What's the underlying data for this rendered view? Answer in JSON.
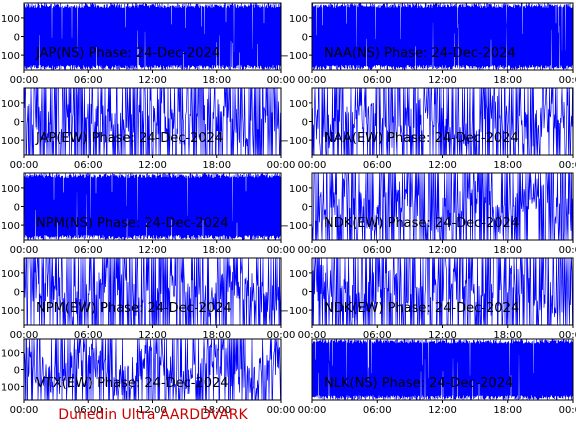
{
  "footer": "Dunedin Ultra AARDDVARK",
  "colors": {
    "trace": "#0000ff",
    "frame": "#000000",
    "footer": "#cc0000",
    "background": "#ffffff"
  },
  "chart_data": [
    {
      "type": "line",
      "title": "JAP(NS) Phase: 24-Dec-2024",
      "x_ticks": [
        "00:00",
        "06:00",
        "12:00",
        "18:00",
        "00:00"
      ],
      "y_ticks": [
        "100",
        "0",
        "-100"
      ],
      "ylim": [
        -180,
        180
      ],
      "axis_labels_shown": true,
      "fill": 0.97,
      "amplitude": 180
    },
    {
      "type": "line",
      "title": "NAA(NS) Phase: 24-Dec-2024",
      "x_ticks": [
        "00:00",
        "06:00",
        "12:00",
        "18:00",
        "00:00"
      ],
      "y_ticks": [
        "100",
        "0",
        "-100"
      ],
      "ylim": [
        -180,
        180
      ],
      "axis_labels_shown": true,
      "fill": 0.95,
      "amplitude": 180
    },
    {
      "type": "line",
      "title": "JAP(EW) Phase: 24-Dec-2024",
      "x_ticks": [
        "00:00",
        "06:00",
        "12:00",
        "18:00",
        "00:00"
      ],
      "y_ticks": [
        "100",
        "0",
        "-100"
      ],
      "ylim": [
        -180,
        180
      ],
      "axis_labels_shown": true,
      "fill": 0.6,
      "amplitude": 180
    },
    {
      "type": "line",
      "title": "NAA(EW) Phase: 24-Dec-2024",
      "x_ticks": [
        "00:00",
        "06:00",
        "12:00",
        "18:00",
        "00:00"
      ],
      "y_ticks": [
        "100",
        "0",
        "-100"
      ],
      "ylim": [
        -180,
        180
      ],
      "axis_labels_shown": true,
      "fill": 0.55,
      "amplitude": 180
    },
    {
      "type": "line",
      "title": "NPM(NS) Phase: 24-Dec-2024",
      "x_ticks": [
        "00:00",
        "06:00",
        "12:00",
        "18:00",
        "00:00"
      ],
      "y_ticks": [
        "100",
        "0",
        "-100"
      ],
      "ylim": [
        -180,
        180
      ],
      "axis_labels_shown": true,
      "fill": 0.98,
      "amplitude": 180
    },
    {
      "type": "line",
      "title": "NDK(EW) Phase: 24-Dec-2024",
      "x_ticks": [
        "00:00",
        "06:00",
        "12:00",
        "18:00",
        "00:00"
      ],
      "y_ticks": [
        "100",
        "0",
        "-100"
      ],
      "ylim": [
        -180,
        180
      ],
      "axis_labels_shown": true,
      "fill": 0.5,
      "amplitude": 180
    },
    {
      "type": "line",
      "title": "NPM(EW) Phase: 24-Dec-2024",
      "x_ticks": [
        "00:00",
        "06:00",
        "12:00",
        "18:00",
        "00:00"
      ],
      "y_ticks": [
        "100",
        "0",
        "-100"
      ],
      "ylim": [
        -180,
        180
      ],
      "axis_labels_shown": true,
      "fill": 0.55,
      "amplitude": 180
    },
    {
      "type": "line",
      "title": "NDK(EW) Phase: 24-Dec-2024",
      "x_ticks": [
        "00:00",
        "06:00",
        "12:00",
        "18:00",
        "00:00"
      ],
      "y_ticks": [
        "100",
        "0",
        "-100"
      ],
      "ylim": [
        -180,
        180
      ],
      "axis_labels_shown": true,
      "fill": 0.55,
      "amplitude": 180
    },
    {
      "type": "line",
      "title": "VTX(EW) Phase: 24-Dec-2024",
      "x_ticks": [
        "00:00",
        "06:00",
        "12:00",
        "18:00",
        "00:00"
      ],
      "y_ticks": [
        "100",
        "0",
        "-100"
      ],
      "ylim": [
        -180,
        180
      ],
      "axis_labels_shown": true,
      "fill": 0.4,
      "amplitude": 180
    },
    {
      "type": "line",
      "title": "NLK(NS) Phase: 24-Dec-2024",
      "x_ticks": [
        "00:00",
        "06:00",
        "12:00",
        "18:00",
        "00:00"
      ],
      "y_ticks": [],
      "ylim": [
        -180,
        180
      ],
      "axis_labels_shown": false,
      "fill": 0.99,
      "amplitude": 180
    }
  ]
}
